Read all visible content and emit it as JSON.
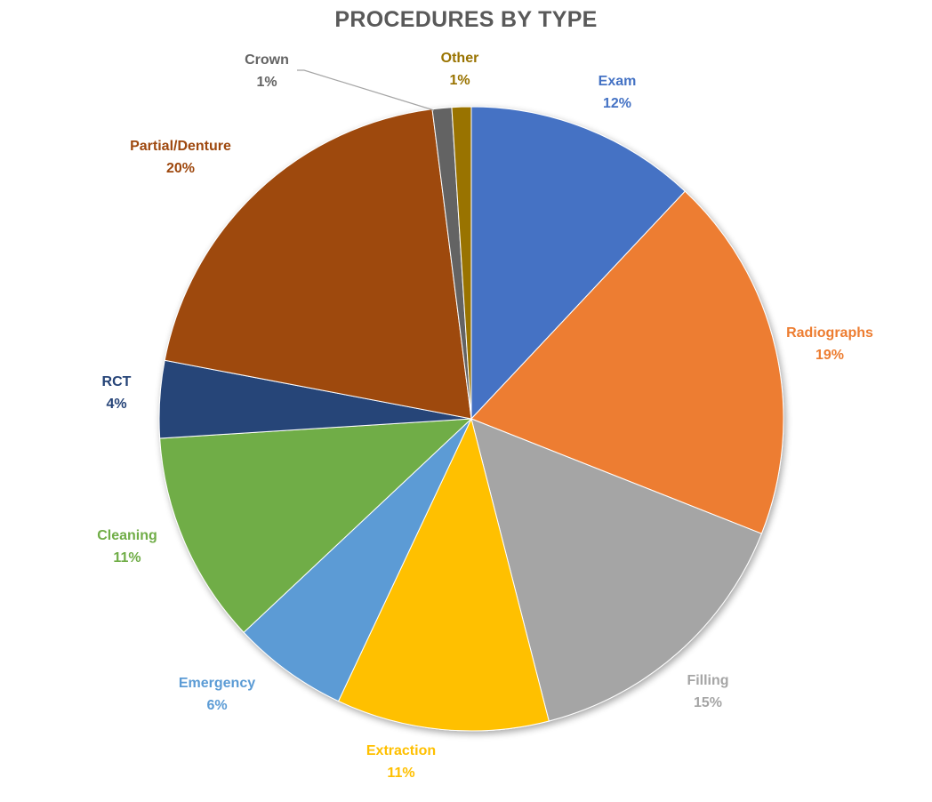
{
  "chart_data": {
    "type": "pie",
    "title": "PROCEDURES BY TYPE",
    "slices": [
      {
        "label": "Exam",
        "value": 12,
        "display": "12%",
        "color": "#4472C4"
      },
      {
        "label": "Radiographs",
        "value": 19,
        "display": "19%",
        "color": "#ED7D31"
      },
      {
        "label": "Filling",
        "value": 15,
        "display": "15%",
        "color": "#A5A5A5"
      },
      {
        "label": "Extraction",
        "value": 11,
        "display": "11%",
        "color": "#FFC000"
      },
      {
        "label": "Emergency",
        "value": 6,
        "display": "6%",
        "color": "#5B9BD5"
      },
      {
        "label": "Cleaning",
        "value": 11,
        "display": "11%",
        "color": "#70AD47"
      },
      {
        "label": "RCT",
        "value": 4,
        "display": "4%",
        "color": "#264478"
      },
      {
        "label": "Partial/Denture",
        "value": 20,
        "display": "20%",
        "color": "#9E480E"
      },
      {
        "label": "Crown",
        "value": 1,
        "display": "1%",
        "color": "#636363"
      },
      {
        "label": "Other",
        "value": 1,
        "display": "1%",
        "color": "#997300"
      }
    ],
    "start_angle": "12 o'clock",
    "direction": "clockwise",
    "legend": "none (data labels beside slices)"
  }
}
